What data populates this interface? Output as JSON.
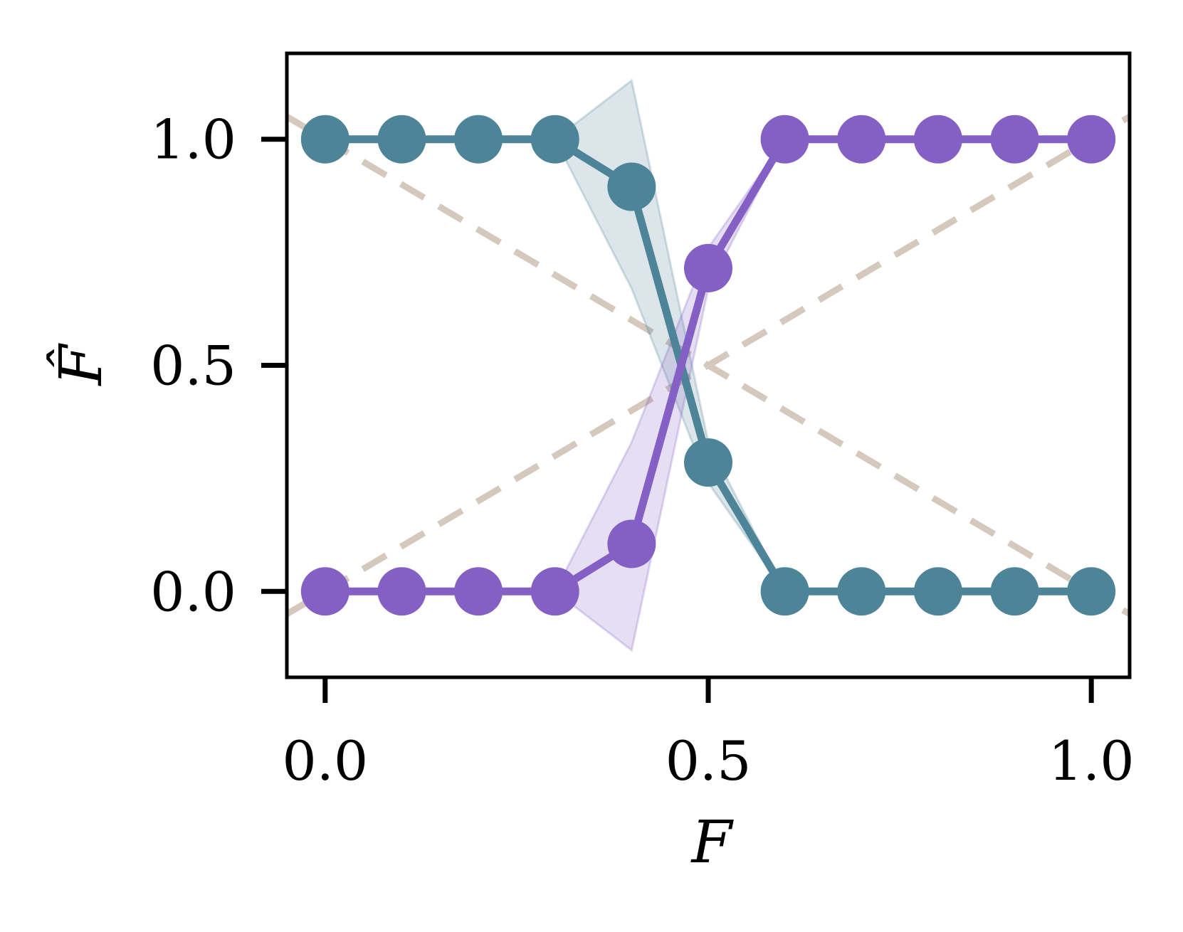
{
  "chart_data": {
    "type": "line",
    "xlabel": "F",
    "ylabel": "F̂",
    "xlim": [
      -0.05,
      1.05
    ],
    "ylim": [
      -0.19,
      1.19
    ],
    "xticks": [
      0.0,
      0.5,
      1.0
    ],
    "xtick_labels": [
      "0.0",
      "0.5",
      "1.0"
    ],
    "yticks": [
      0.0,
      0.5,
      1.0
    ],
    "ytick_labels": [
      "0.0",
      "0.5",
      "1.0"
    ],
    "grid": false,
    "legend": "none",
    "x": [
      0.0,
      0.1,
      0.2,
      0.3,
      0.4,
      0.5,
      0.6,
      0.7,
      0.8,
      0.9,
      1.0
    ],
    "series": [
      {
        "color": "#4e8497",
        "values": [
          1.0,
          1.0,
          1.0,
          1.0,
          0.895,
          0.285,
          0.0,
          0.0,
          0.0,
          0.0,
          0.0
        ],
        "band_lower": [
          1.0,
          1.0,
          1.0,
          1.0,
          0.67,
          0.24,
          0.0,
          0.0,
          0.0,
          0.0,
          0.0
        ],
        "band_upper": [
          1.0,
          1.0,
          1.0,
          1.0,
          1.13,
          0.33,
          0.0,
          0.0,
          0.0,
          0.0,
          0.0
        ]
      },
      {
        "color": "#8460c4",
        "values": [
          0.0,
          0.0,
          0.0,
          0.0,
          0.105,
          0.715,
          1.0,
          1.0,
          1.0,
          1.0,
          1.0
        ],
        "band_lower": [
          0.0,
          0.0,
          0.0,
          0.0,
          -0.13,
          0.67,
          1.0,
          1.0,
          1.0,
          1.0,
          1.0
        ],
        "band_upper": [
          0.0,
          0.0,
          0.0,
          0.0,
          0.33,
          0.76,
          1.0,
          1.0,
          1.0,
          1.0,
          1.0
        ]
      }
    ],
    "reference_lines": [
      {
        "style": "dashed",
        "color": "#d5c9bd",
        "points": [
          [
            -0.05,
            -0.05
          ],
          [
            1.05,
            1.05
          ]
        ]
      },
      {
        "style": "dashed",
        "color": "#d5c9bd",
        "points": [
          [
            -0.05,
            1.05
          ],
          [
            1.05,
            -0.05
          ]
        ]
      }
    ]
  }
}
